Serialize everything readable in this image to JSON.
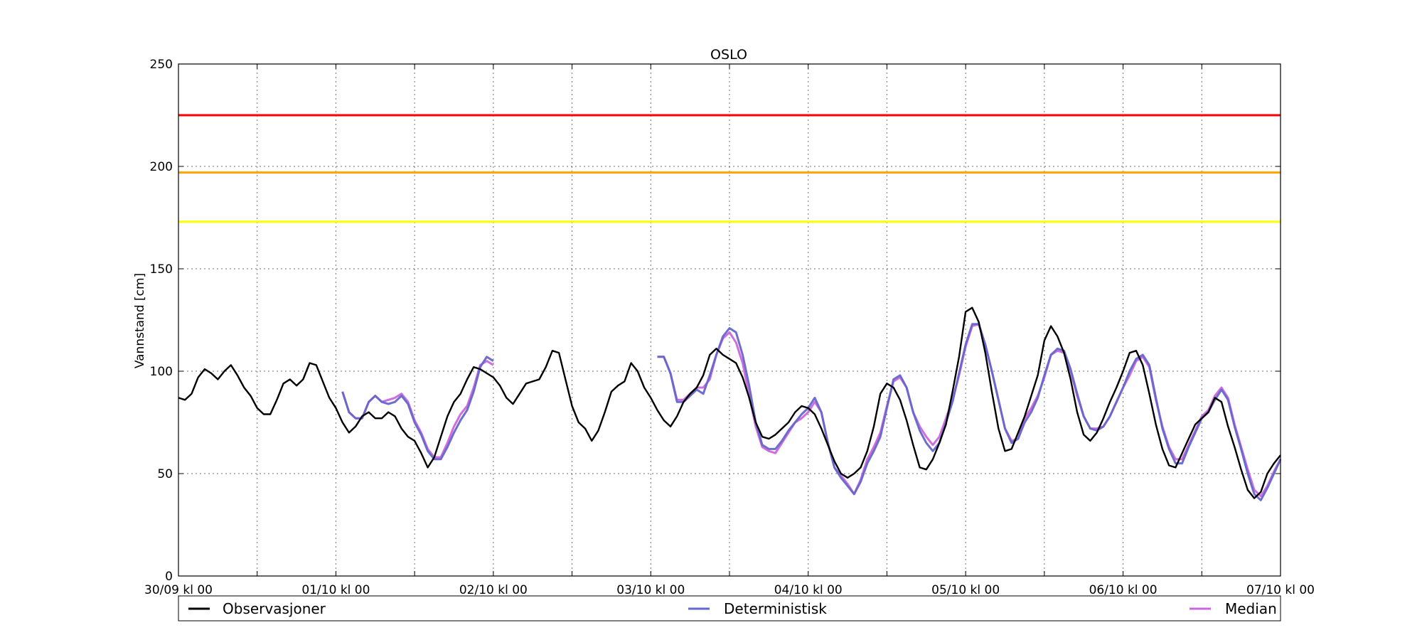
{
  "chart_data": {
    "type": "line",
    "title": "OSLO",
    "xlabel": "",
    "ylabel": "Vannstand [cm]",
    "ylim": [
      0,
      250
    ],
    "yticks": [
      0,
      50,
      100,
      150,
      200,
      250
    ],
    "xlim_hours": [
      0,
      168
    ],
    "xtick_labels": [
      "30/09 kl 00",
      "01/10 kl 00",
      "02/10 kl 00",
      "03/10 kl 00",
      "04/10 kl 00",
      "05/10 kl 00",
      "06/10 kl 00",
      "07/10 kl 00"
    ],
    "grid": true,
    "legend_position": "bottom",
    "thresholds": [
      {
        "value": 225,
        "color": "#ff0000"
      },
      {
        "value": 197,
        "color": "#ffa500"
      },
      {
        "value": 173,
        "color": "#ffff00"
      }
    ],
    "series": [
      {
        "name": "Observasjoner",
        "color": "#000000",
        "x": [
          0,
          1,
          2,
          3,
          4,
          5,
          6,
          7,
          8,
          9,
          10,
          11,
          12,
          13,
          14,
          15,
          16,
          17,
          18,
          19,
          20,
          21,
          22,
          23,
          24,
          25,
          26,
          27,
          28,
          29,
          30,
          31,
          32,
          33,
          34,
          35,
          36,
          37,
          38,
          39,
          40,
          41,
          42,
          43,
          44,
          45,
          46,
          47,
          48,
          49,
          50,
          51,
          52,
          53,
          54,
          55,
          56,
          57,
          58,
          59,
          60,
          61,
          62,
          63,
          64,
          65,
          66,
          67,
          68,
          69,
          70,
          71,
          72,
          73,
          74,
          75,
          76,
          77,
          78,
          79,
          80,
          81,
          82,
          83,
          84,
          85,
          86,
          87,
          88,
          89,
          90,
          91,
          92,
          93,
          94,
          95,
          96,
          97,
          98,
          99,
          100,
          101,
          102,
          103,
          104,
          105,
          106,
          107,
          108,
          109,
          110,
          111,
          112,
          113,
          114,
          115,
          116,
          117,
          118,
          119,
          120,
          121,
          122,
          123,
          124,
          125,
          126,
          127,
          128,
          129,
          130,
          131,
          132,
          133,
          134,
          135,
          136,
          137,
          138,
          139,
          140,
          141,
          142,
          143,
          144,
          145,
          146,
          147,
          148,
          149,
          150,
          151,
          152,
          153,
          154,
          155,
          156,
          157,
          158,
          159,
          160,
          161,
          162,
          163,
          164,
          165,
          166,
          167,
          168
        ],
        "values": [
          87,
          86,
          89,
          97,
          101,
          99,
          96,
          100,
          103,
          98,
          92,
          88,
          82,
          79,
          79,
          86,
          94,
          96,
          93,
          96,
          104,
          103,
          95,
          87,
          82,
          75,
          70,
          73,
          78,
          80,
          77,
          77,
          80,
          78,
          72,
          68,
          66,
          60,
          53,
          58,
          68,
          78,
          85,
          89,
          96,
          102,
          101,
          99,
          97,
          93,
          87,
          84,
          89,
          94,
          95,
          96,
          102,
          110,
          109,
          96,
          83,
          75,
          72,
          66,
          71,
          80,
          90,
          93,
          95,
          104,
          100,
          92,
          87,
          81,
          76,
          73,
          78,
          85,
          89,
          92,
          98,
          108,
          111,
          108,
          106,
          104,
          97,
          87,
          75,
          68,
          67,
          69,
          72,
          75,
          80,
          83,
          82,
          79,
          72,
          64,
          56,
          50,
          48,
          50,
          53,
          61,
          73,
          89,
          94,
          92,
          86,
          76,
          64,
          53,
          52,
          57,
          65,
          74,
          90,
          107,
          129,
          131,
          124,
          109,
          90,
          72,
          61,
          62,
          70,
          78,
          88,
          98,
          115,
          122,
          117,
          109,
          96,
          80,
          69,
          66,
          70,
          77,
          85,
          92,
          100,
          109,
          110,
          103,
          89,
          74,
          62,
          54,
          53,
          60,
          67,
          74,
          77,
          80,
          87,
          85,
          73,
          63,
          52,
          42,
          38,
          41,
          50,
          55,
          59
        ]
      },
      {
        "name": "Deterministisk",
        "color": "#6666cc",
        "segments": [
          {
            "x": [
              25,
              26,
              27,
              28,
              29,
              30,
              31,
              32,
              33,
              34,
              35,
              36,
              37,
              38,
              39,
              40,
              41,
              42,
              43,
              44,
              45,
              46,
              47,
              48
            ],
            "values": [
              90,
              80,
              77,
              77,
              85,
              88,
              85,
              84,
              85,
              88,
              84,
              75,
              69,
              61,
              57,
              57,
              63,
              70,
              76,
              81,
              90,
              102,
              107,
              105
            ]
          },
          {
            "x": [
              73,
              74,
              75,
              76,
              77,
              78,
              79,
              80,
              81,
              82,
              83,
              84,
              85,
              86,
              87,
              88,
              89,
              90,
              91,
              92,
              93,
              94,
              95,
              96,
              97,
              98,
              99,
              100,
              101,
              102,
              103,
              104,
              105,
              106,
              107,
              108,
              109,
              110,
              111,
              112,
              113,
              114,
              115,
              116,
              117,
              118,
              119,
              120,
              121,
              122,
              123,
              124,
              125,
              126,
              127,
              128,
              129,
              130,
              131,
              132,
              133,
              134,
              135,
              136,
              137,
              138,
              139,
              140,
              141,
              142,
              143,
              144,
              145,
              146,
              147,
              148,
              149,
              150,
              151,
              152,
              153,
              154,
              155,
              156,
              157,
              158,
              159,
              160,
              161,
              162,
              163,
              164,
              165,
              166,
              167,
              168
            ],
            "values": [
              107,
              107,
              99,
              85,
              85,
              88,
              91,
              89,
              98,
              108,
              117,
              121,
              119,
              108,
              93,
              75,
              64,
              62,
              62,
              66,
              71,
              75,
              79,
              82,
              87,
              80,
              65,
              53,
              48,
              44,
              40,
              46,
              55,
              61,
              68,
              82,
              96,
              98,
              92,
              80,
              71,
              65,
              61,
              65,
              75,
              85,
              99,
              113,
              123,
              123,
              113,
              100,
              86,
              72,
              65,
              67,
              75,
              80,
              87,
              98,
              108,
              111,
              110,
              101,
              89,
              78,
              72,
              71,
              73,
              78,
              85,
              92,
              100,
              106,
              108,
              103,
              87,
              72,
              62,
              55,
              55,
              63,
              70,
              77,
              80,
              86,
              91,
              86,
              73,
              62,
              50,
              40,
              37,
              43,
              50,
              57
            ]
          }
        ]
      },
      {
        "name": "Median",
        "color": "#cc66dd",
        "segments": [
          {
            "x": [
              25,
              26,
              27,
              28,
              29,
              30,
              31,
              32,
              33,
              34,
              35,
              36,
              37,
              38,
              39,
              40,
              41,
              42,
              43,
              44,
              45,
              46,
              47,
              48
            ],
            "values": [
              90,
              80,
              77,
              77,
              85,
              88,
              85,
              86,
              87,
              89,
              85,
              76,
              70,
              62,
              58,
              58,
              65,
              73,
              79,
              83,
              92,
              103,
              105,
              103
            ]
          },
          {
            "x": [
              73,
              74,
              75,
              76,
              77,
              78,
              79,
              80,
              81,
              82,
              83,
              84,
              85,
              86,
              87,
              88,
              89,
              90,
              91,
              92,
              93,
              94,
              95,
              96,
              97,
              98,
              99,
              100,
              101,
              102,
              103,
              104,
              105,
              106,
              107,
              108,
              109,
              110,
              111,
              112,
              113,
              114,
              115,
              116,
              117,
              118,
              119,
              120,
              121,
              122,
              123,
              124,
              125,
              126,
              127,
              128,
              129,
              130,
              131,
              132,
              133,
              134,
              135,
              136,
              137,
              138,
              139,
              140,
              141,
              142,
              143,
              144,
              145,
              146,
              147,
              148,
              149,
              150,
              151,
              152,
              153,
              154,
              155,
              156,
              157,
              158,
              159,
              160,
              161,
              162,
              163,
              164,
              165,
              166,
              167,
              168
            ],
            "values": [
              107,
              107,
              99,
              86,
              86,
              89,
              92,
              92,
              96,
              108,
              116,
              119,
              114,
              104,
              88,
              73,
              63,
              61,
              60,
              65,
              70,
              75,
              77,
              80,
              85,
              80,
              65,
              53,
              49,
              45,
              40,
              47,
              57,
              63,
              70,
              83,
              95,
              97,
              92,
              80,
              73,
              68,
              64,
              68,
              77,
              86,
              98,
              112,
              122,
              123,
              113,
              100,
              86,
              72,
              66,
              67,
              77,
              82,
              88,
              97,
              108,
              110,
              109,
              100,
              88,
              78,
              72,
              72,
              73,
              78,
              85,
              92,
              98,
              105,
              107,
              102,
              86,
              73,
              63,
              57,
              57,
              64,
              71,
              78,
              81,
              88,
              92,
              87,
              74,
              63,
              52,
              42,
              39,
              44,
              51,
              57
            ]
          }
        ]
      }
    ]
  }
}
